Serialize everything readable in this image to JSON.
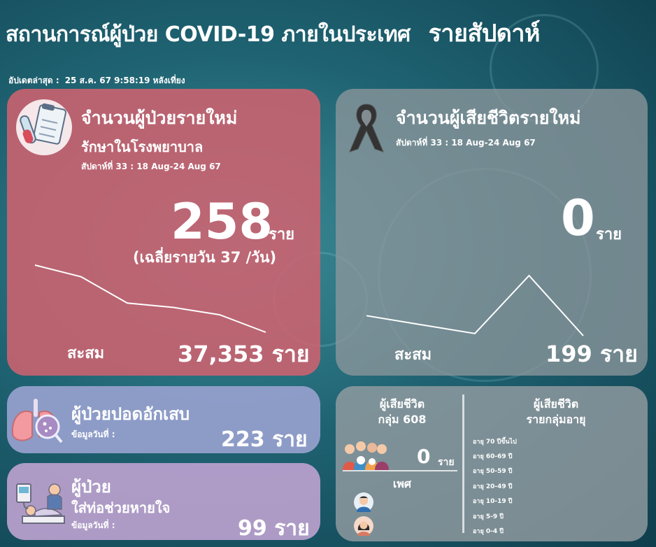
{
  "header": {
    "title": "สถานการณ์ผู้ป่วย COVID-19 ภายในประเทศ",
    "weekly_label": "รายสัปดาห์",
    "updated_label": "อัปเดตล่าสุด :",
    "updated_value": "25 ส.ค. 67 9:58:19 หลังเที่ยง"
  },
  "new_cases": {
    "title": "จำนวนผู้ป่วยรายใหม่",
    "subtitle": "รักษาในโรงพยาบาล",
    "week_label": "สัปดาห์ที่ 33 : 18 Aug-24 Aug 67",
    "value": "258",
    "unit": "ราย",
    "average": "(เฉลี่ยรายวัน 37 /วัน)",
    "cumulative_label": "สะสม",
    "cumulative_value": "37,353 ราย",
    "trend": [
      100,
      92,
      74,
      71,
      66,
      54
    ]
  },
  "deaths": {
    "title": "จำนวนผู้เสียชีวิตรายใหม่",
    "week_label": "สัปดาห์ที่ 33 : 18 Aug-24 Aug 67",
    "value": "0",
    "unit": "ราย",
    "cumulative_label": "สะสม",
    "cumulative_value": "199 ราย",
    "trend": [
      50,
      42,
      34,
      86,
      32
    ]
  },
  "pneumonia": {
    "title": "ผู้ป่วยปอดอักเสบ",
    "date_label": "ข้อมูลวันที่ :",
    "value": "223 ราย"
  },
  "ventilator": {
    "title": "ผู้ป่วย",
    "subtitle": "ใส่ท่อช่วยหายใจ",
    "date_label": "ข้อมูลวันที่ :",
    "value": "99 ราย"
  },
  "group608": {
    "title_line1": "ผู้เสียชีวิต",
    "title_line2": "กลุ่ม 608",
    "value": "0",
    "unit": "ราย",
    "gender_label": "เพศ",
    "age_title_line1": "ผู้เสียชีวิต",
    "age_title_line2": "รายกลุ่มอายุ",
    "age_groups": [
      "อายุ 70 ปีขึ้นไป",
      "อายุ 60-69 ปี",
      "อายุ 50-59 ปี",
      "อายุ 20-49 ปี",
      "อายุ 10-19 ปี",
      "อายุ 5-9 ปี",
      "อายุ 0-4 ปี"
    ]
  },
  "icons": {
    "new_cases": "medical-form-icon",
    "deaths": "mourning-ribbon-icon",
    "pneumonia": "lungs-icon",
    "ventilator": "ventilator-patient-icon",
    "group608": "elderly-group-icon",
    "male": "male-avatar-icon",
    "female": "female-avatar-icon"
  }
}
